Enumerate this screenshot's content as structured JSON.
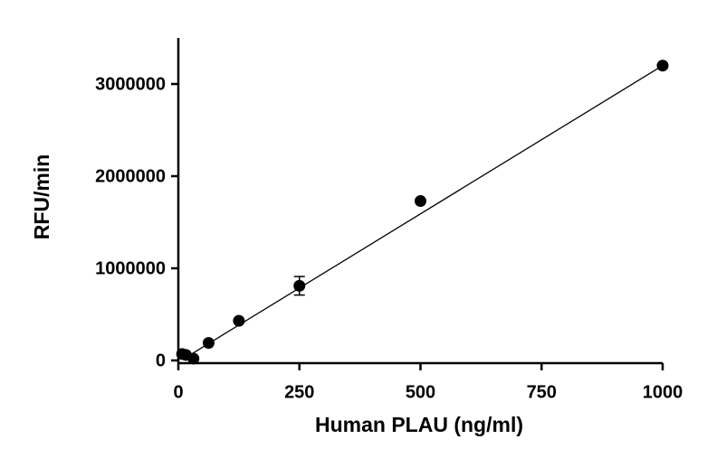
{
  "chart_data": {
    "type": "scatter",
    "x_label": "Human PLAU (ng/ml)",
    "y_label": "RFU/min",
    "series": [
      {
        "name": "PLAU",
        "color": "#000000",
        "x": [
          7.8,
          15.6,
          31.25,
          62.5,
          125,
          250,
          500,
          1000
        ],
        "values": [
          70000,
          60000,
          20000,
          190000,
          430000,
          810000,
          1730000,
          3200000
        ],
        "errors": [
          0,
          0,
          0,
          0,
          0,
          100000,
          0,
          0
        ]
      }
    ],
    "fit": {
      "x": [
        15,
        1000
      ],
      "values": [
        30000,
        3200000
      ]
    },
    "xlim": [
      0,
      1000
    ],
    "xticks": [
      0,
      250,
      500,
      750,
      1000
    ],
    "ylim": [
      0,
      3500000
    ],
    "yticks": [
      0,
      1000000,
      2000000,
      3000000
    ]
  }
}
